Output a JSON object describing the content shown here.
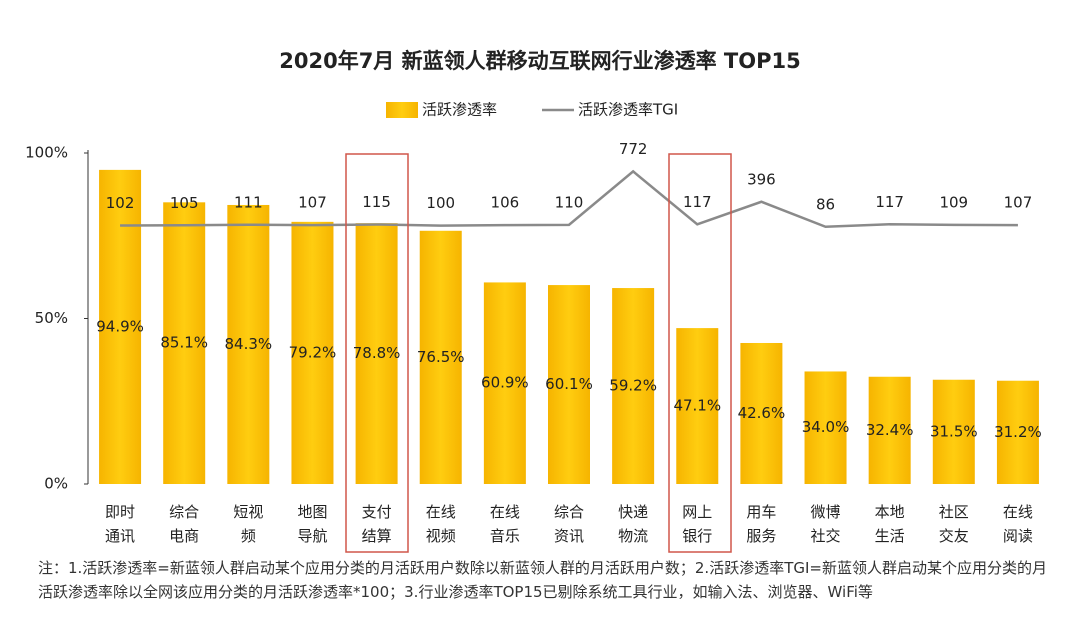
{
  "chart_data": {
    "type": "bar_line",
    "title": "2020年7月 新蓝领人群移动互联网行业渗透率 TOP15",
    "categories": [
      "即时通讯",
      "综合电商",
      "短视频",
      "地图导航",
      "支付结算",
      "在线视频",
      "在线音乐",
      "综合资讯",
      "快递物流",
      "网上银行",
      "用车服务",
      "微博社交",
      "本地生活",
      "社区交友",
      "在线阅读"
    ],
    "series": [
      {
        "name": "活跃渗透率",
        "color": "#fcc000",
        "values": [
          94.9,
          85.1,
          84.3,
          79.2,
          78.8,
          76.5,
          60.9,
          60.1,
          59.2,
          47.1,
          42.6,
          34.0,
          32.4,
          31.5,
          31.2
        ],
        "value_labels": [
          "94.9%",
          "85.1%",
          "84.3%",
          "79.2%",
          "78.8%",
          "76.5%",
          "60.9%",
          "60.1%",
          "59.2%",
          "47.1%",
          "42.6%",
          "34.0%",
          "32.4%",
          "31.5%",
          "31.2%"
        ]
      },
      {
        "name": "活跃渗透率TGI",
        "color": "#8a8a8a",
        "axis": "y2",
        "values": [
          102,
          105,
          111,
          107,
          115,
          100,
          106,
          110,
          772,
          117,
          396,
          86,
          117,
          109,
          107
        ]
      }
    ],
    "ylim": [
      0,
      100
    ],
    "yticks": [
      {
        "value": 0,
        "label": "0%"
      },
      {
        "value": 50,
        "label": "50%"
      },
      {
        "value": 100,
        "label": "100%"
      }
    ],
    "y2lim": [
      -3100,
      1000
    ],
    "note": "注：1.活跃渗透率=新蓝领人群启动某个应用分类的月活跃用户数除以新蓝领人群的月活跃用户数；2.活跃渗透率TGI=新蓝领人群启动某个应用分类的月活跃渗透率除以全网该应用分类的月活跃渗透率*100；3.行业渗透率TOP15已剔除系统工具行业，如输入法、浏览器、WiFi等"
  }
}
